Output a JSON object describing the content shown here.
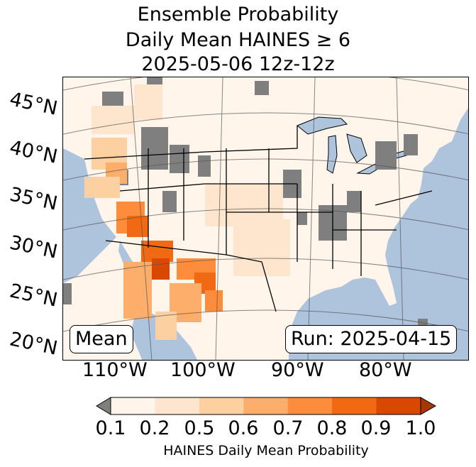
{
  "title": {
    "line1": "Ensemble Probability",
    "line2": "Daily Mean HAINES ≥ 6",
    "line3": "2025-05-06 12z-12z"
  },
  "map": {
    "lat_labels": [
      "45°N",
      "40°N",
      "35°N",
      "30°N",
      "25°N",
      "20°N"
    ],
    "lon_labels": [
      "110°W",
      "100°W",
      "90°W",
      "80°W"
    ],
    "mean_label": "Mean",
    "run_label": "Run: 2025-04-15",
    "colors": {
      "ocean": "#aec4dd",
      "land_base": "#fff5eb",
      "missing": "#7f7f7f",
      "lakes": "#aec4dd"
    }
  },
  "colorbar": {
    "ticks": [
      "0.1",
      "0.2",
      "0.5",
      "0.6",
      "0.7",
      "0.8",
      "0.9",
      "1.0"
    ],
    "colors": [
      "#fff5eb",
      "#fee6ce",
      "#fdd0a2",
      "#fdae6b",
      "#fd8d3c",
      "#f16913",
      "#d94801",
      "#a63603"
    ],
    "under_color": "#7f7f7f",
    "label": "HAINES Daily Mean Probability"
  }
}
